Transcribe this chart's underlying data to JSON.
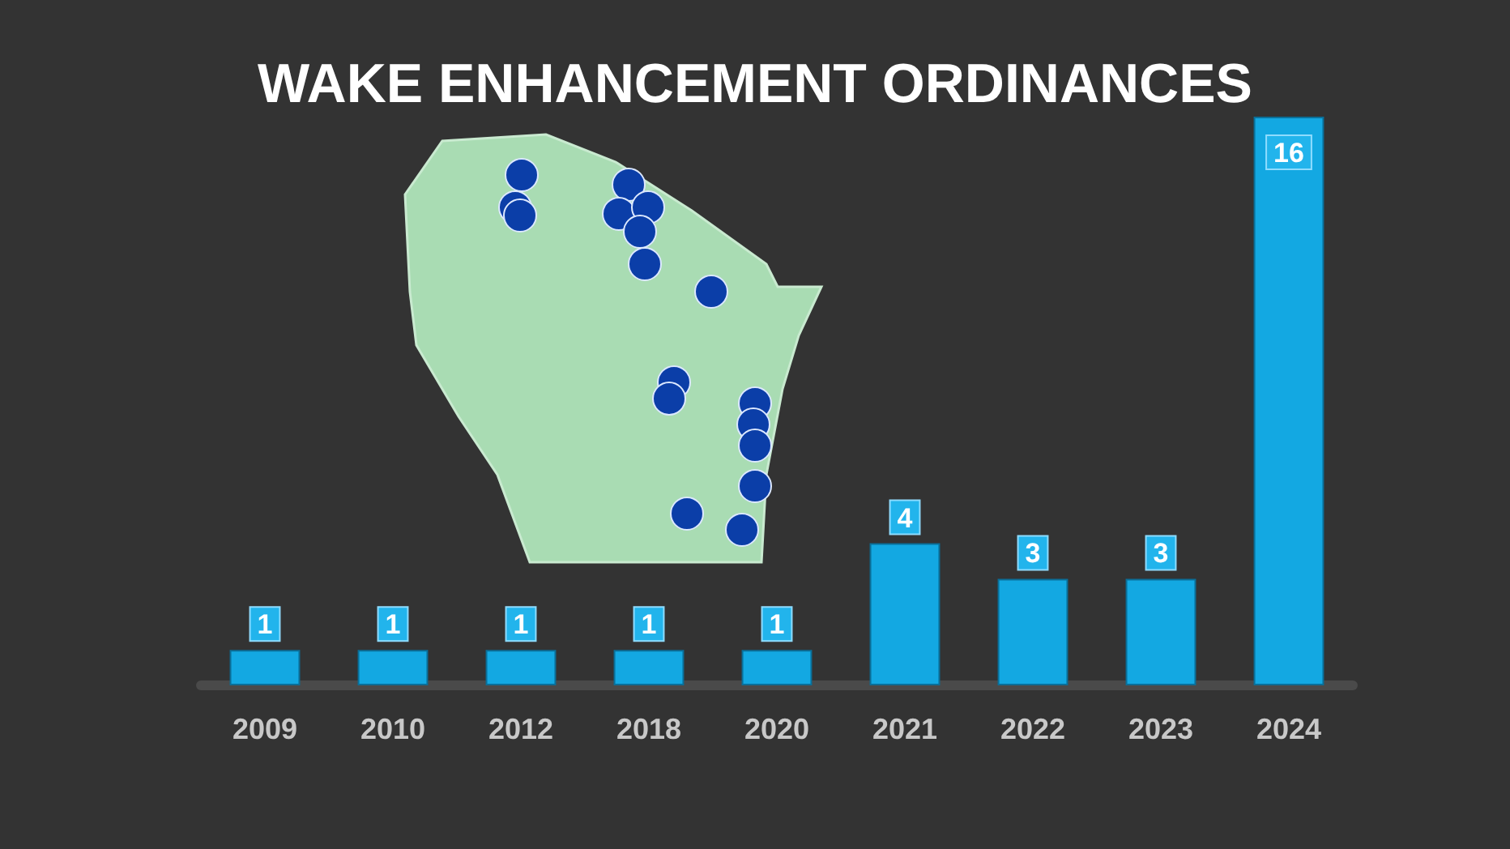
{
  "chart_data": {
    "type": "bar",
    "title": "WAKE ENHANCEMENT ORDINANCES",
    "categories": [
      "2009",
      "2010",
      "2012",
      "2018",
      "2020",
      "2021",
      "2022",
      "2023",
      "2024"
    ],
    "values": [
      1,
      1,
      1,
      1,
      1,
      4,
      3,
      3,
      16
    ],
    "color": "#13a8e2",
    "data_labels": true
  }
}
